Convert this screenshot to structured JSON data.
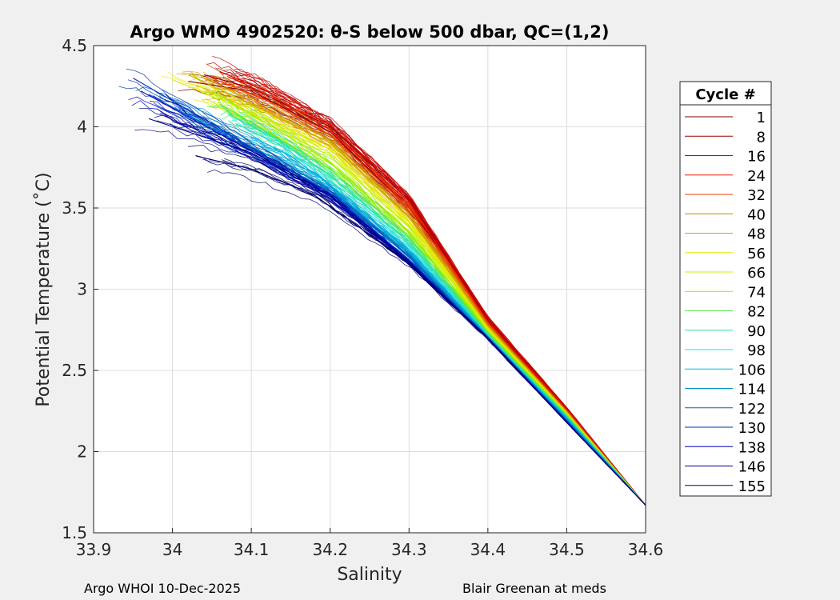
{
  "chart_data": {
    "type": "line",
    "title": "Argo WMO 4902520: θ-S below 500 dbar,  QC=(1,2)",
    "xlabel": "Salinity",
    "ylabel": "Potential Temperature (˚C)",
    "xlim": [
      33.9,
      34.6
    ],
    "ylim": [
      1.5,
      4.5
    ],
    "xticks": [
      "33.9",
      "34",
      "34.1",
      "34.2",
      "34.3",
      "34.4",
      "34.5",
      "34.6"
    ],
    "yticks": [
      "1.5",
      "2",
      "2.5",
      "3",
      "3.5",
      "4",
      "4.5"
    ],
    "grid": true,
    "colormap": "jet",
    "legend": {
      "title": "Cycle #",
      "placement": "outside-right",
      "entries": [
        "1",
        "8",
        "16",
        "24",
        "32",
        "40",
        "48",
        "56",
        "66",
        "74",
        "82",
        "90",
        "98",
        "106",
        "114",
        "122",
        "130",
        "138",
        "146",
        "155"
      ],
      "colors": [
        "#800000",
        "#9d0000",
        "#c80000",
        "#e61a00",
        "#f03c00",
        "#d28200",
        "#d2aa00",
        "#e6e600",
        "#c8f000",
        "#96f000",
        "#5ae650",
        "#28e6a0",
        "#28dcdc",
        "#00b4e6",
        "#0096c8",
        "#0064c8",
        "#0032b4",
        "#0000b4",
        "#00008c",
        "#00006e"
      ]
    },
    "envelope": {
      "cool_fresh_edge": [
        [
          33.94,
          4.31
        ],
        [
          34.1,
          3.86
        ],
        [
          34.2,
          3.57
        ],
        [
          34.3,
          3.16
        ],
        [
          34.4,
          2.7
        ],
        [
          34.5,
          2.18
        ],
        [
          34.6,
          1.67
        ]
      ],
      "warm_salty_edge": [
        [
          34.06,
          4.36
        ],
        [
          34.2,
          4.02
        ],
        [
          34.3,
          3.58
        ],
        [
          34.35,
          3.19
        ],
        [
          34.4,
          2.82
        ],
        [
          34.5,
          2.27
        ],
        [
          34.6,
          1.67
        ]
      ]
    },
    "series": [
      {
        "name": "1",
        "points": [
          [
            34.02,
            4.28
          ],
          [
            34.1,
            4.22
          ],
          [
            34.2,
            3.97
          ],
          [
            34.3,
            3.5
          ],
          [
            34.35,
            3.18
          ],
          [
            34.4,
            2.8
          ],
          [
            34.5,
            2.25
          ],
          [
            34.6,
            1.67
          ]
        ]
      },
      {
        "name": "8",
        "points": [
          [
            34.04,
            4.32
          ],
          [
            34.1,
            4.24
          ],
          [
            34.2,
            4.0
          ],
          [
            34.3,
            3.55
          ],
          [
            34.35,
            3.18
          ],
          [
            34.4,
            2.81
          ],
          [
            34.5,
            2.26
          ],
          [
            34.6,
            1.67
          ]
        ]
      },
      {
        "name": "16",
        "points": [
          [
            34.06,
            4.34
          ],
          [
            34.12,
            4.22
          ],
          [
            34.2,
            4.01
          ],
          [
            34.3,
            3.56
          ],
          [
            34.35,
            3.19
          ],
          [
            34.4,
            2.82
          ],
          [
            34.5,
            2.27
          ],
          [
            34.6,
            1.67
          ]
        ]
      },
      {
        "name": "24",
        "points": [
          [
            34.07,
            4.31
          ],
          [
            34.13,
            4.18
          ],
          [
            34.2,
            3.98
          ],
          [
            34.3,
            3.53
          ],
          [
            34.35,
            3.17
          ],
          [
            34.4,
            2.8
          ],
          [
            34.5,
            2.26
          ],
          [
            34.6,
            1.67
          ]
        ]
      },
      {
        "name": "32",
        "points": [
          [
            34.05,
            4.3
          ],
          [
            34.12,
            4.16
          ],
          [
            34.2,
            3.95
          ],
          [
            34.3,
            3.5
          ],
          [
            34.35,
            3.15
          ],
          [
            34.4,
            2.79
          ],
          [
            34.5,
            2.25
          ],
          [
            34.6,
            1.67
          ]
        ]
      },
      {
        "name": "40",
        "points": [
          [
            34.04,
            4.3
          ],
          [
            34.12,
            4.14
          ],
          [
            34.2,
            3.92
          ],
          [
            34.3,
            3.47
          ],
          [
            34.35,
            3.13
          ],
          [
            34.4,
            2.78
          ],
          [
            34.5,
            2.25
          ],
          [
            34.6,
            1.67
          ]
        ]
      },
      {
        "name": "48",
        "points": [
          [
            34.02,
            4.32
          ],
          [
            34.1,
            4.14
          ],
          [
            34.2,
            3.9
          ],
          [
            34.3,
            3.44
          ],
          [
            34.35,
            3.11
          ],
          [
            34.4,
            2.77
          ],
          [
            34.5,
            2.24
          ],
          [
            34.6,
            1.67
          ]
        ]
      },
      {
        "name": "56",
        "points": [
          [
            34.0,
            4.29
          ],
          [
            34.08,
            4.13
          ],
          [
            34.2,
            3.86
          ],
          [
            34.3,
            3.41
          ],
          [
            34.35,
            3.09
          ],
          [
            34.4,
            2.76
          ],
          [
            34.5,
            2.24
          ],
          [
            34.6,
            1.67
          ]
        ]
      },
      {
        "name": "66",
        "points": [
          [
            34.03,
            4.26
          ],
          [
            34.1,
            4.07
          ],
          [
            34.2,
            3.82
          ],
          [
            34.3,
            3.38
          ],
          [
            34.35,
            3.07
          ],
          [
            34.4,
            2.75
          ],
          [
            34.5,
            2.23
          ],
          [
            34.6,
            1.67
          ]
        ]
      },
      {
        "name": "74",
        "points": [
          [
            34.05,
            4.22
          ],
          [
            34.12,
            4.02
          ],
          [
            34.2,
            3.78
          ],
          [
            34.3,
            3.35
          ],
          [
            34.35,
            3.05
          ],
          [
            34.4,
            2.74
          ],
          [
            34.5,
            2.23
          ],
          [
            34.6,
            1.67
          ]
        ]
      },
      {
        "name": "82",
        "points": [
          [
            34.06,
            4.14
          ],
          [
            34.12,
            3.97
          ],
          [
            34.2,
            3.74
          ],
          [
            34.3,
            3.32
          ],
          [
            34.35,
            3.03
          ],
          [
            34.4,
            2.73
          ],
          [
            34.5,
            2.22
          ],
          [
            34.6,
            1.67
          ]
        ]
      },
      {
        "name": "90",
        "points": [
          [
            34.07,
            4.08
          ],
          [
            34.13,
            3.93
          ],
          [
            34.2,
            3.7
          ],
          [
            34.3,
            3.29
          ],
          [
            34.35,
            3.01
          ],
          [
            34.4,
            2.72
          ],
          [
            34.5,
            2.22
          ],
          [
            34.6,
            1.67
          ]
        ]
      },
      {
        "name": "98",
        "points": [
          [
            34.08,
            4.02
          ],
          [
            34.14,
            3.88
          ],
          [
            34.2,
            3.66
          ],
          [
            34.3,
            3.26
          ],
          [
            34.35,
            2.99
          ],
          [
            34.4,
            2.72
          ],
          [
            34.5,
            2.21
          ],
          [
            34.6,
            1.67
          ]
        ]
      },
      {
        "name": "106",
        "points": [
          [
            34.1,
            3.94
          ],
          [
            34.15,
            3.82
          ],
          [
            34.2,
            3.64
          ],
          [
            34.3,
            3.24
          ],
          [
            34.35,
            2.98
          ],
          [
            34.4,
            2.71
          ],
          [
            34.5,
            2.21
          ],
          [
            34.6,
            1.67
          ]
        ]
      },
      {
        "name": "114",
        "points": [
          [
            34.0,
            4.12
          ],
          [
            34.1,
            3.88
          ],
          [
            34.2,
            3.62
          ],
          [
            34.3,
            3.22
          ],
          [
            34.35,
            2.96
          ],
          [
            34.4,
            2.71
          ],
          [
            34.5,
            2.2
          ],
          [
            34.6,
            1.67
          ]
        ]
      },
      {
        "name": "122",
        "points": [
          [
            33.97,
            4.2
          ],
          [
            34.1,
            3.86
          ],
          [
            34.2,
            3.6
          ],
          [
            34.3,
            3.2
          ],
          [
            34.35,
            2.95
          ],
          [
            34.4,
            2.7
          ],
          [
            34.5,
            2.19
          ],
          [
            34.6,
            1.67
          ]
        ]
      },
      {
        "name": "130",
        "points": [
          [
            33.95,
            4.3
          ],
          [
            34.05,
            4.02
          ],
          [
            34.1,
            3.87
          ],
          [
            34.2,
            3.59
          ],
          [
            34.3,
            3.18
          ],
          [
            34.35,
            2.94
          ],
          [
            34.4,
            2.7
          ],
          [
            34.5,
            2.19
          ],
          [
            34.6,
            1.67
          ]
        ]
      },
      {
        "name": "138",
        "points": [
          [
            33.96,
            4.22
          ],
          [
            34.1,
            3.85
          ],
          [
            34.2,
            3.58
          ],
          [
            34.3,
            3.17
          ],
          [
            34.35,
            2.93
          ],
          [
            34.4,
            2.7
          ],
          [
            34.5,
            2.18
          ],
          [
            34.6,
            1.67
          ]
        ]
      },
      {
        "name": "146",
        "points": [
          [
            33.97,
            4.05
          ],
          [
            34.1,
            3.84
          ],
          [
            34.2,
            3.57
          ],
          [
            34.3,
            3.16
          ],
          [
            34.35,
            2.93
          ],
          [
            34.4,
            2.7
          ],
          [
            34.5,
            2.18
          ],
          [
            34.6,
            1.67
          ]
        ]
      },
      {
        "name": "155",
        "points": [
          [
            34.03,
            3.82
          ],
          [
            34.1,
            3.74
          ],
          [
            34.18,
            3.58
          ],
          [
            34.3,
            3.16
          ],
          [
            34.35,
            2.93
          ],
          [
            34.4,
            2.7
          ],
          [
            34.5,
            2.18
          ],
          [
            34.6,
            1.67
          ]
        ]
      }
    ]
  },
  "footer": {
    "left": "Argo WHOI 10-Dec-2025",
    "right": "Blair Greenan at meds"
  }
}
